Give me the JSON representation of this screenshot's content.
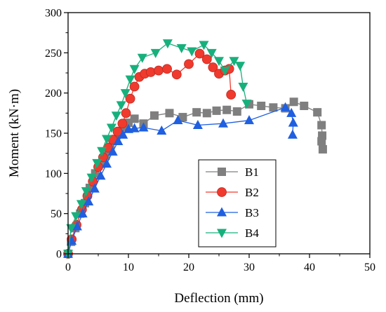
{
  "chart_data": {
    "type": "line",
    "xlabel": "Deflection (mm)",
    "ylabel": "Moment (kN·m)",
    "xlim": [
      0,
      50
    ],
    "ylim": [
      0,
      300
    ],
    "xticks": [
      0,
      10,
      20,
      30,
      40,
      50
    ],
    "yticks": [
      0,
      50,
      100,
      150,
      200,
      250,
      300
    ],
    "grid": false,
    "legend_position": "lower-right",
    "series": [
      {
        "name": "B1",
        "color": "#7f7f7f",
        "marker": "square",
        "x": [
          0,
          0.5,
          1.2,
          2.0,
          2.8,
          3.6,
          4.5,
          5.4,
          6.2,
          7.0,
          7.8,
          8.5,
          9.2,
          10.0,
          11.0,
          12.5,
          14.3,
          16.8,
          19.0,
          21.3,
          23.0,
          24.6,
          26.3,
          28.0,
          30.0,
          32.0,
          34.0,
          36.0,
          37.4,
          39.1,
          41.3,
          42.0,
          42.1,
          42.0,
          42.2
        ],
        "y": [
          0,
          15,
          32,
          50,
          63,
          82,
          100,
          112,
          122,
          133,
          142,
          150,
          158,
          163,
          168,
          162,
          172,
          175,
          170,
          176,
          175,
          178,
          179,
          177,
          186,
          184,
          182,
          181,
          189,
          184,
          176,
          160,
          147,
          140,
          130
        ]
      },
      {
        "name": "B2",
        "color": "#f03a2e",
        "marker": "circle",
        "x": [
          0,
          0.6,
          1.4,
          2.3,
          3.2,
          4.1,
          5.0,
          5.8,
          6.6,
          7.4,
          8.2,
          9.0,
          9.6,
          10.3,
          11.0,
          11.8,
          12.7,
          13.7,
          15.0,
          16.4,
          18.0,
          20.0,
          21.8,
          23.0,
          24.0,
          25.0,
          26.0,
          26.7,
          27.0
        ],
        "y": [
          0,
          18,
          36,
          55,
          72,
          90,
          108,
          120,
          132,
          142,
          152,
          162,
          175,
          193,
          208,
          220,
          224,
          226,
          228,
          230,
          223,
          236,
          249,
          242,
          232,
          224,
          228,
          230,
          198
        ]
      },
      {
        "name": "B3",
        "color": "#1f5fe0",
        "marker": "triangle-up",
        "x": [
          0,
          0.6,
          1.5,
          2.4,
          3.4,
          4.4,
          5.4,
          6.4,
          7.4,
          8.3,
          9.1,
          10.0,
          11.0,
          12.5,
          15.5,
          18.2,
          21.5,
          25.7,
          30.0,
          36.0,
          37.0,
          37.3,
          37.2
        ],
        "y": [
          0,
          16,
          34,
          50,
          65,
          81,
          97,
          112,
          127,
          140,
          148,
          155,
          156,
          157,
          153,
          166,
          160,
          162,
          166,
          182,
          175,
          163,
          148
        ]
      },
      {
        "name": "B4",
        "color": "#17b07c",
        "marker": "triangle-down",
        "x": [
          0,
          0.5,
          1.3,
          2.2,
          3.0,
          3.9,
          4.8,
          5.6,
          6.4,
          7.2,
          8.0,
          8.8,
          9.5,
          10.3,
          11.0,
          12.3,
          14.5,
          16.5,
          18.8,
          20.5,
          22.5,
          23.8,
          25.0,
          26.0,
          27.5,
          28.5,
          29.0,
          29.6
        ],
        "y": [
          0,
          32,
          47,
          62,
          78,
          95,
          113,
          128,
          143,
          157,
          172,
          185,
          200,
          217,
          230,
          244,
          250,
          262,
          256,
          252,
          260,
          250,
          240,
          228,
          240,
          234,
          208,
          187
        ]
      }
    ]
  }
}
